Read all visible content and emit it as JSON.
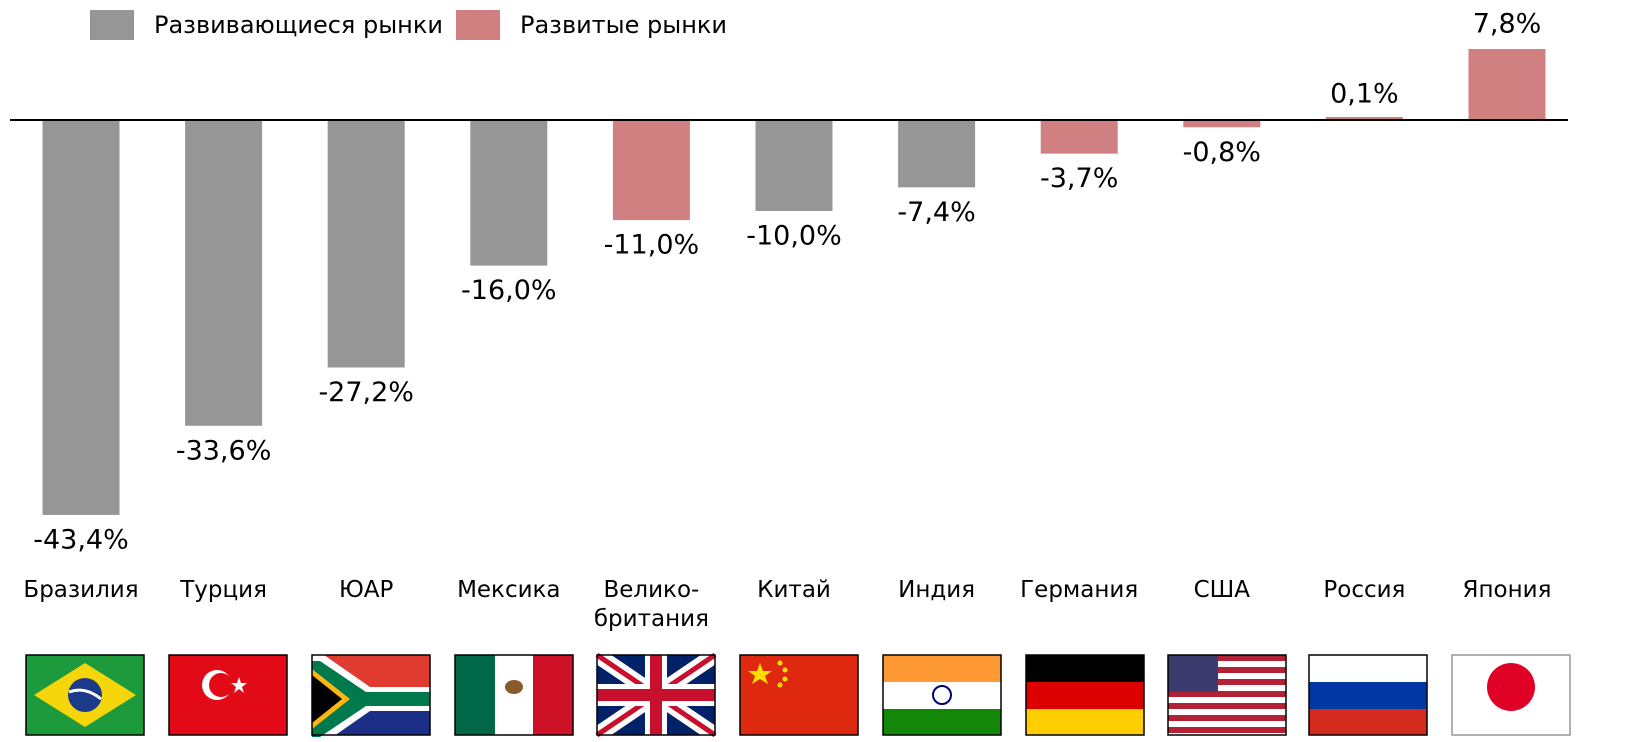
{
  "chart_data": {
    "type": "bar",
    "categories": [
      "Бразилия",
      "Турция",
      "ЮАР",
      "Мексика",
      "Велико-\nбритания",
      "Китай",
      "Индия",
      "Германия",
      "США",
      "Россия",
      "Япония"
    ],
    "series": [
      {
        "name": "Развивающиеся рынки",
        "color": "#969696",
        "values": [
          -43.4,
          -33.6,
          -27.2,
          -16.0,
          null,
          -10.0,
          -7.4,
          null,
          null,
          null,
          null
        ],
        "value_labels": [
          "-43,4%",
          "-33,6%",
          "-27,2%",
          "-16,0%",
          null,
          "-10,0%",
          "-7,4%",
          null,
          null,
          null,
          null
        ]
      },
      {
        "name": "Развитые рынки",
        "color": "#d08080",
        "values": [
          null,
          null,
          null,
          null,
          -11.0,
          null,
          null,
          -3.7,
          -0.8,
          0.1,
          7.8
        ],
        "value_labels": [
          null,
          null,
          null,
          null,
          "-11,0%",
          null,
          null,
          "-3,7%",
          "-0,8%",
          "0,1%",
          "7,8%"
        ]
      }
    ]
  }
}
